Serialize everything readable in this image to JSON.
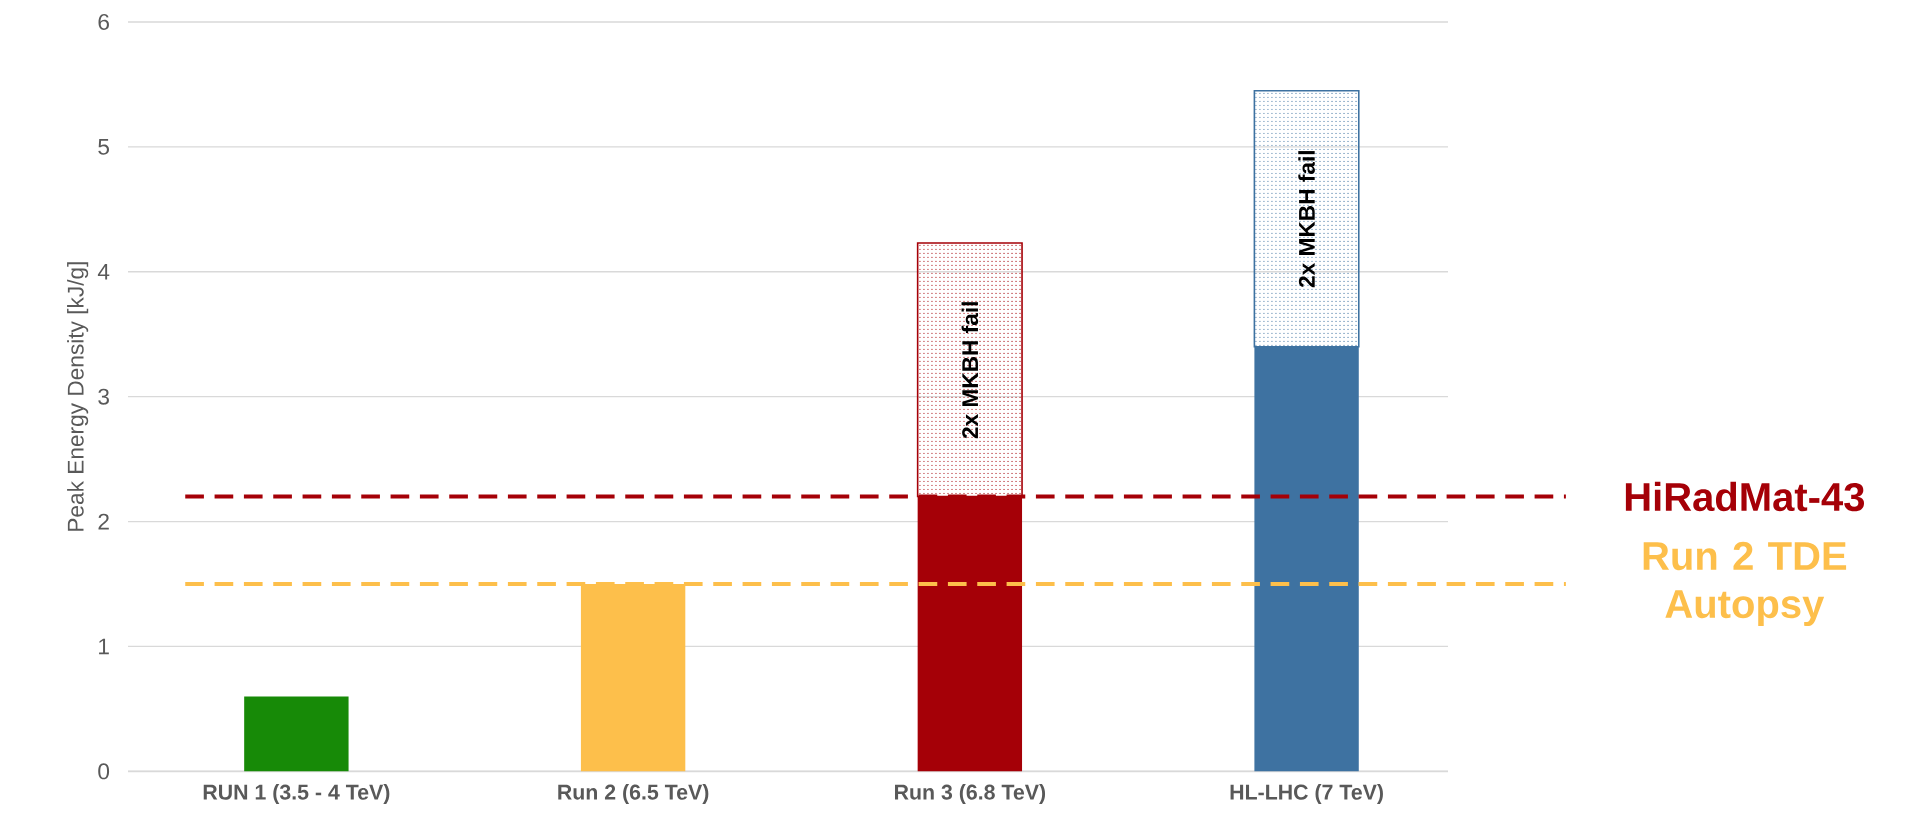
{
  "chart_data": {
    "type": "bar",
    "stacked": true,
    "ylabel": "Peak Energy Density [kJ/g]",
    "categories": [
      "RUN 1 (3.5 - 4 TeV)",
      "Run 2 (6.5 TeV)",
      "Run 3 (6.8 TeV)",
      "HL-LHC (7 TeV)"
    ],
    "series": [
      {
        "colors": [
          "#178a07",
          "#fdbf4b",
          "#a50007",
          "#3e72a1"
        ],
        "values": [
          0.6,
          1.5,
          2.2,
          3.4
        ]
      },
      {
        "colors": [
          "#178a07",
          "#fdbf4b",
          "#a50007",
          "#3e72a1"
        ],
        "values": [
          null,
          null,
          2.03,
          2.05
        ],
        "value_labels": [
          null,
          null,
          "2x MKBH fail",
          "2x MKBH fail"
        ]
      }
    ],
    "ylim": [
      0,
      6
    ],
    "yticks": [
      0,
      1,
      2,
      3,
      4,
      5,
      6
    ],
    "grid": "y",
    "ref_lines": [
      {
        "axis": "y",
        "value": 2.2,
        "label": "HiRadMat-43",
        "color": "#a50007",
        "line_style": "dashed"
      },
      {
        "axis": "y",
        "value": 1.5,
        "label": "Run 2 TDE Autopsy",
        "color": "#fdbf4b",
        "line_style": "dashed"
      }
    ]
  }
}
